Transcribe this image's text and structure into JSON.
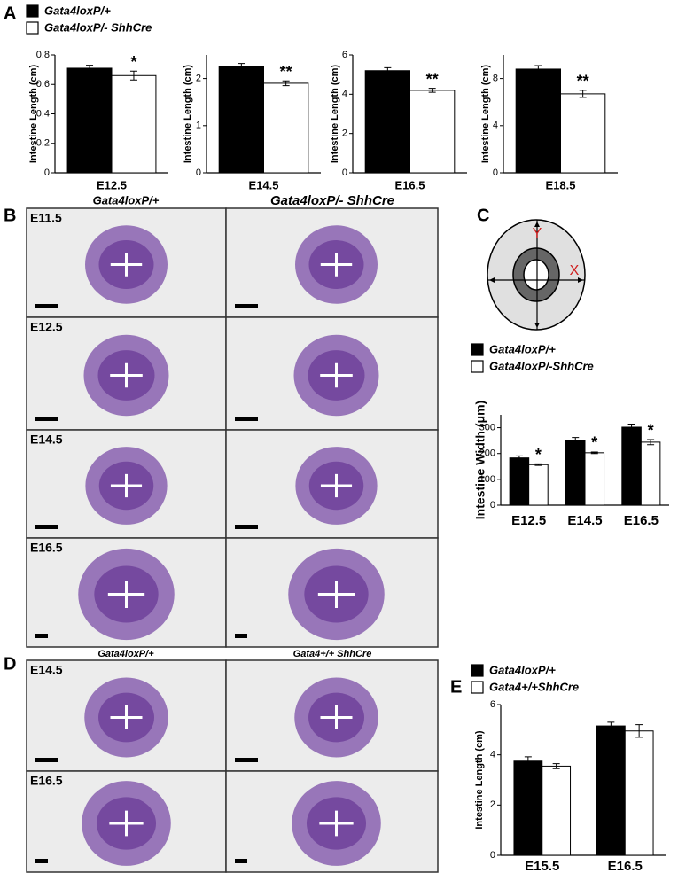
{
  "panel_labels": [
    "A",
    "B",
    "C",
    "D",
    "E"
  ],
  "panel_b": {
    "column_headers": [
      "Gata4loxP/+",
      "Gata4loxP/- ShhCre"
    ],
    "row_labels": [
      "E11.5",
      "E12.5",
      "E14.5",
      "E16.5"
    ]
  },
  "panel_d": {
    "column_headers": [
      "Gata4loxP/+",
      "Gata4+/+ ShhCre"
    ],
    "row_labels": [
      "E14.5",
      "E16.5"
    ]
  },
  "diagram": {
    "axis_labels": [
      "Y",
      "X"
    ]
  },
  "chart_data": [
    {
      "type": "bar",
      "y_label": "Intestine Length (cm)",
      "categories": [
        "E12.5"
      ],
      "series": [
        {
          "name": "Gata4loxP/+",
          "color": "#000000",
          "values": [
            0.71
          ],
          "errors": [
            0.02
          ]
        },
        {
          "name": "Gata4loxP/- ShhCre",
          "color": "#ffffff",
          "values": [
            0.66
          ],
          "errors": [
            0.03
          ]
        }
      ],
      "significance": [
        "*"
      ],
      "ylim": [
        0,
        0.8
      ],
      "yticks": [
        0,
        0.2,
        0.4,
        0.6,
        0.8
      ]
    },
    {
      "type": "bar",
      "y_label": "Intestine Length (cm)",
      "categories": [
        "E14.5"
      ],
      "series": [
        {
          "color": "#000000",
          "values": [
            2.25
          ],
          "errors": [
            0.07
          ]
        },
        {
          "color": "#ffffff",
          "values": [
            1.9
          ],
          "errors": [
            0.05
          ]
        }
      ],
      "significance": [
        "**"
      ],
      "ylim": [
        0,
        2.5
      ],
      "yticks": [
        0,
        1,
        2
      ]
    },
    {
      "type": "bar",
      "y_label": "Intestine Length (cm)",
      "categories": [
        "E16.5"
      ],
      "series": [
        {
          "color": "#000000",
          "values": [
            5.2
          ],
          "errors": [
            0.15
          ]
        },
        {
          "color": "#ffffff",
          "values": [
            4.2
          ],
          "errors": [
            0.1
          ]
        }
      ],
      "significance": [
        "**"
      ],
      "ylim": [
        0,
        6
      ],
      "yticks": [
        0,
        2,
        4,
        6
      ]
    },
    {
      "type": "bar",
      "y_label": "Intestine Length (cm)",
      "categories": [
        "E18.5"
      ],
      "series": [
        {
          "color": "#000000",
          "values": [
            8.8
          ],
          "errors": [
            0.3
          ]
        },
        {
          "color": "#ffffff",
          "values": [
            6.7
          ],
          "errors": [
            0.3
          ]
        }
      ],
      "significance": [
        "**"
      ],
      "ylim": [
        0,
        10
      ],
      "yticks": [
        0,
        4,
        8
      ]
    },
    {
      "type": "bar",
      "y_label": "Intestine Width (μm)",
      "categories": [
        "E12.5",
        "E14.5",
        "E16.5"
      ],
      "series": [
        {
          "name": "Gata4loxP/+",
          "color": "#000000",
          "values": [
            183,
            250,
            302
          ],
          "errors": [
            8,
            12,
            12
          ]
        },
        {
          "name": "Gata4loxP/-ShhCre",
          "color": "#ffffff",
          "values": [
            157,
            203,
            244
          ],
          "errors": [
            3,
            3,
            10
          ]
        }
      ],
      "significance": [
        "*",
        "*",
        "*"
      ],
      "ylim": [
        0,
        350
      ],
      "yticks": [
        0,
        100,
        200,
        300
      ]
    },
    {
      "type": "bar",
      "y_label": "Intestine Length (cm)",
      "categories": [
        "E15.5",
        "E16.5"
      ],
      "series": [
        {
          "name": "Gata4loxP/+",
          "color": "#000000",
          "values": [
            3.75,
            5.15
          ],
          "errors": [
            0.17,
            0.15
          ]
        },
        {
          "name": "Gata4+/+ShhCre",
          "color": "#ffffff",
          "values": [
            3.55,
            4.95
          ],
          "errors": [
            0.1,
            0.25
          ]
        }
      ],
      "ylim": [
        0,
        6
      ],
      "yticks": [
        0,
        2,
        4,
        6
      ]
    }
  ]
}
